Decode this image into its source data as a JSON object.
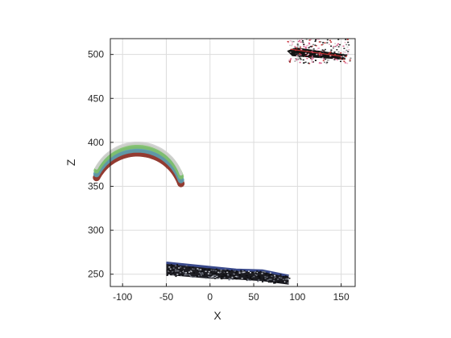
{
  "chart_data": {
    "type": "scatter",
    "xlabel": "X",
    "ylabel": "Z",
    "xlim": [
      -114,
      166
    ],
    "ylim": [
      236,
      518
    ],
    "xticks": [
      -100,
      -50,
      0,
      50,
      100,
      150
    ],
    "yticks": [
      250,
      300,
      350,
      400,
      450,
      500
    ],
    "xtick_labels": [
      "-100",
      "-50",
      "0",
      "50",
      "100",
      "150"
    ],
    "ytick_labels": [
      "250",
      "300",
      "350",
      "400",
      "450",
      "500"
    ],
    "grid": true,
    "series": [
      {
        "color": "#3a4a8c",
        "shape": "band",
        "top_edge": [
          [
            -50,
            263
          ],
          [
            0,
            258
          ],
          [
            30,
            255
          ],
          [
            60,
            254
          ],
          [
            90,
            248
          ]
        ],
        "bottom_edge": [
          [
            -50,
            249
          ],
          [
            0,
            245
          ],
          [
            30,
            244
          ],
          [
            60,
            242
          ],
          [
            90,
            238
          ]
        ]
      },
      {
        "color": "#8a2a20",
        "shape": "arc",
        "center": [
          -83,
          341
        ],
        "radius": 53,
        "angle_range_deg": [
          20,
          152
        ],
        "layer_colors": [
          "#8a2a20",
          "#5a9fb0",
          "#7fbf6a",
          "#cfcfcf"
        ]
      },
      {
        "color": "#1a1a1a",
        "shape": "cluster",
        "bounds_x": [
          88,
          160
        ],
        "bounds_z": [
          490,
          518
        ]
      }
    ]
  },
  "colors": {
    "axis": "#262626",
    "grid": "#dcdcdc",
    "background": "#ffffff"
  }
}
